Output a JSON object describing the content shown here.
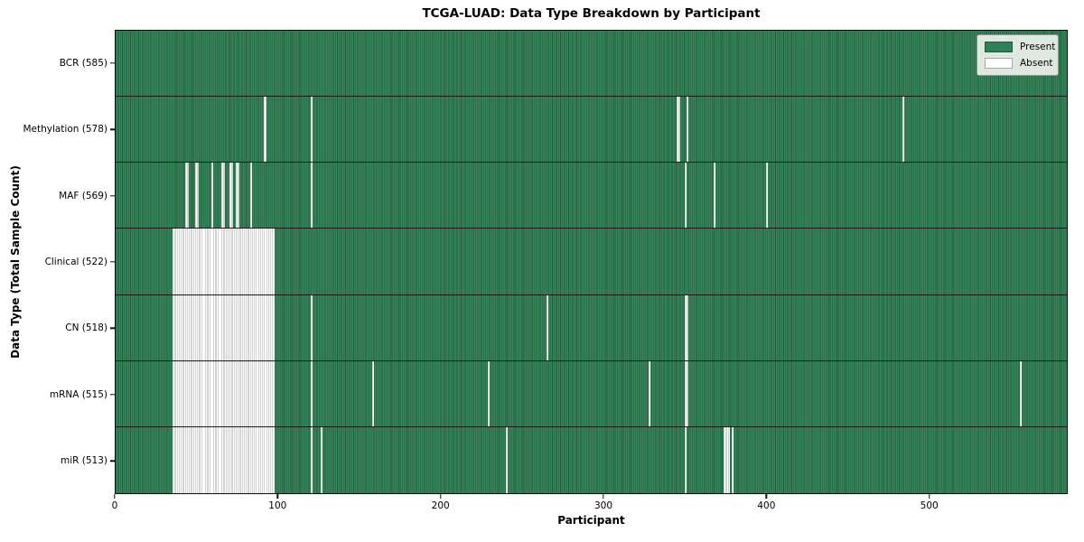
{
  "chart_data": {
    "type": "heatmap",
    "title": "TCGA-LUAD: Data Type Breakdown by Participant",
    "xlabel": "Participant",
    "ylabel": "Data Type (Total Sample Count)",
    "x_max": 585,
    "x_ticks": [
      0,
      100,
      200,
      300,
      400,
      500
    ],
    "grid": false,
    "legend_position": "upper right",
    "legend": [
      {
        "label": "Present",
        "color": "#2e8055",
        "edge": "#1f5a3a"
      },
      {
        "label": "Absent",
        "color": "#ffffff",
        "edge": "#a5aaa5"
      }
    ],
    "colors": {
      "present_fill": "#37855b",
      "present_edge": "#225c3d",
      "absent_fill": "#fdfdfd",
      "absent_edge": "#a5aaa5",
      "row_divider": "#1b1b1b",
      "spine": "#0d0d0d"
    },
    "rows": [
      {
        "name": "BCR",
        "label": "BCR (585)",
        "count": 585,
        "absent_ranges": []
      },
      {
        "name": "Methylation",
        "label": "Methylation (578)",
        "count": 578,
        "absent_ranges": [
          [
            91,
            92
          ],
          [
            120,
            120
          ],
          [
            345,
            346
          ],
          [
            351,
            351
          ],
          [
            484,
            484
          ]
        ]
      },
      {
        "name": "MAF",
        "label": "MAF (569)",
        "count": 569,
        "absent_ranges": [
          [
            43,
            44
          ],
          [
            49,
            50
          ],
          [
            59,
            59
          ],
          [
            65,
            66
          ],
          [
            70,
            71
          ],
          [
            74,
            75
          ],
          [
            83,
            83
          ],
          [
            120,
            120
          ],
          [
            350,
            350
          ],
          [
            368,
            368
          ],
          [
            400,
            400
          ]
        ]
      },
      {
        "name": "Clinical",
        "label": "Clinical (522)",
        "count": 522,
        "absent_ranges": [
          [
            35,
            97
          ]
        ]
      },
      {
        "name": "CN",
        "label": "CN (518)",
        "count": 518,
        "absent_ranges": [
          [
            35,
            97
          ],
          [
            120,
            120
          ],
          [
            265,
            265
          ],
          [
            350,
            351
          ]
        ]
      },
      {
        "name": "mRNA",
        "label": "mRNA (515)",
        "count": 515,
        "absent_ranges": [
          [
            35,
            97
          ],
          [
            120,
            120
          ],
          [
            158,
            158
          ],
          [
            229,
            229
          ],
          [
            328,
            328
          ],
          [
            350,
            351
          ],
          [
            556,
            556
          ]
        ]
      },
      {
        "name": "miR",
        "label": "miR (513)",
        "count": 513,
        "absent_ranges": [
          [
            35,
            97
          ],
          [
            120,
            120
          ],
          [
            126,
            126
          ],
          [
            240,
            240
          ],
          [
            350,
            350
          ],
          [
            374,
            377
          ],
          [
            379,
            379
          ]
        ]
      }
    ]
  }
}
